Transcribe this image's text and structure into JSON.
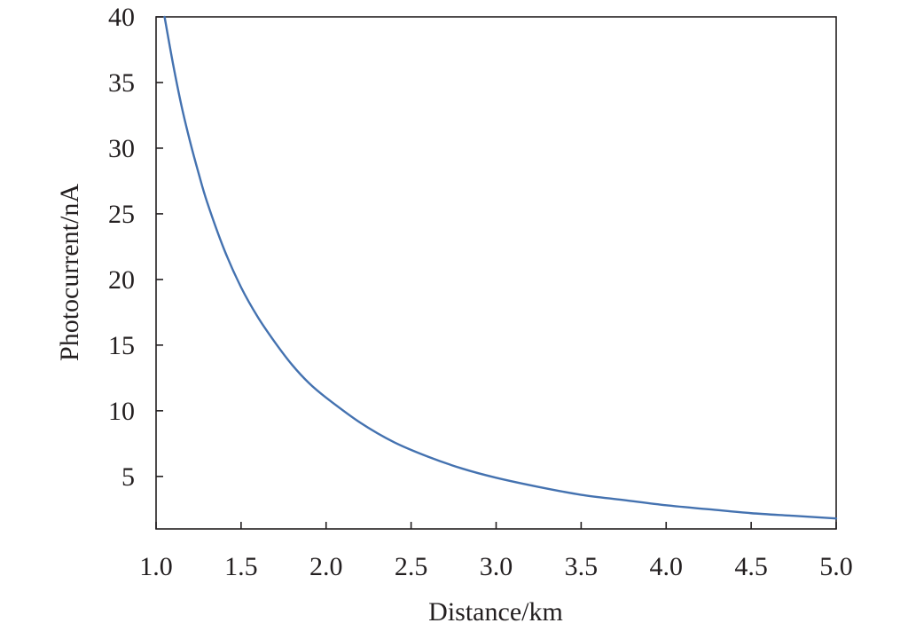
{
  "chart_data": {
    "type": "line",
    "title": "",
    "xlabel": "Distance/km",
    "ylabel": "Photocurrent/nA",
    "xlim": [
      1.0,
      5.0
    ],
    "ylim": [
      1.0,
      40
    ],
    "xticks": [
      "1.0",
      "1.5",
      "2.0",
      "2.5",
      "3.0",
      "3.5",
      "4.0",
      "4.5",
      "5.0"
    ],
    "yticks": [
      "5",
      "10",
      "15",
      "20",
      "25",
      "30",
      "35",
      "40"
    ],
    "grid": false,
    "legend": "none",
    "series": [
      {
        "color": "#4472b0",
        "x": [
          1.05,
          1.1,
          1.15,
          1.2,
          1.25,
          1.3,
          1.4,
          1.5,
          1.6,
          1.7,
          1.8,
          1.9,
          2.0,
          2.2,
          2.4,
          2.6,
          2.8,
          3.0,
          3.25,
          3.5,
          3.75,
          4.0,
          4.25,
          4.5,
          4.75,
          5.0
        ],
        "y": [
          40.0,
          36.4,
          33.2,
          30.5,
          28.1,
          25.9,
          22.3,
          19.4,
          17.1,
          15.2,
          13.5,
          12.1,
          11.0,
          9.1,
          7.6,
          6.5,
          5.6,
          4.9,
          4.2,
          3.6,
          3.2,
          2.8,
          2.5,
          2.2,
          2.0,
          1.8
        ]
      }
    ]
  }
}
